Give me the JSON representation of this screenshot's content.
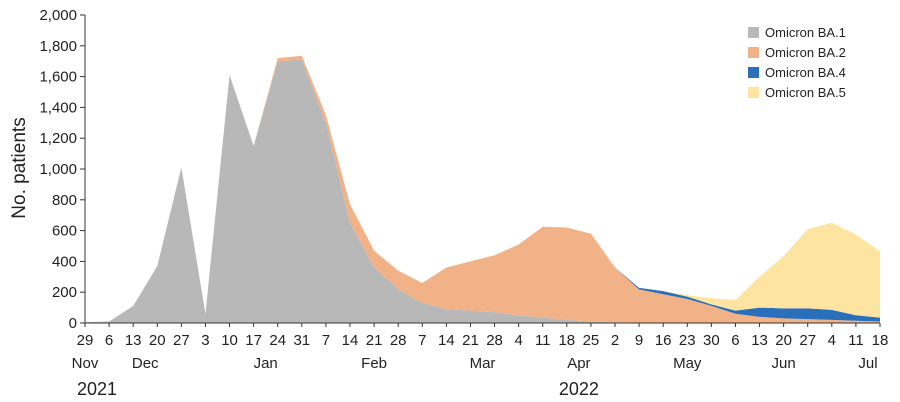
{
  "chart_data": {
    "type": "area",
    "stacked": true,
    "ylabel": "No. patients",
    "ylim": [
      0,
      2000
    ],
    "yticks": [
      0,
      200,
      400,
      600,
      800,
      1000,
      1200,
      1400,
      1600,
      1800,
      2000
    ],
    "ytick_labels": [
      "0",
      "200",
      "400",
      "600",
      "800",
      "1,000",
      "1,200",
      "1,400",
      "1,600",
      "1,800",
      "2,000"
    ],
    "x_day_labels": [
      "29",
      "6",
      "13",
      "20",
      "27",
      "3",
      "10",
      "17",
      "24",
      "31",
      "7",
      "14",
      "21",
      "28",
      "7",
      "14",
      "21",
      "28",
      "4",
      "11",
      "18",
      "25",
      "2",
      "9",
      "16",
      "23",
      "30",
      "6",
      "13",
      "20",
      "27",
      "4",
      "11",
      "18"
    ],
    "months": [
      {
        "label": "Nov",
        "at_week": 0
      },
      {
        "label": "Dec",
        "at_week": 2.5
      },
      {
        "label": "Jan",
        "at_week": 7.5
      },
      {
        "label": "Feb",
        "at_week": 12
      },
      {
        "label": "Mar",
        "at_week": 16.5
      },
      {
        "label": "Apr",
        "at_week": 20.5
      },
      {
        "label": "May",
        "at_week": 25
      },
      {
        "label": "Jun",
        "at_week": 29
      },
      {
        "label": "Jul",
        "at_week": 32.5
      }
    ],
    "years": [
      {
        "label": "2021",
        "at_week": 0.5
      },
      {
        "label": "2022",
        "at_week": 20.5
      }
    ],
    "legend_position": "top-right",
    "series": [
      {
        "name": "Omicron BA.1",
        "color": "#b8b8b8",
        "values": [
          5,
          10,
          110,
          370,
          1010,
          60,
          1610,
          1150,
          1700,
          1710,
          1300,
          650,
          360,
          220,
          130,
          90,
          80,
          70,
          50,
          35,
          20,
          10,
          5,
          3,
          2,
          1,
          1,
          0,
          0,
          0,
          0,
          0,
          0,
          0
        ]
      },
      {
        "name": "Omicron BA.2",
        "color": "#f2b287",
        "values": [
          0,
          0,
          0,
          0,
          0,
          0,
          0,
          0,
          20,
          25,
          50,
          120,
          110,
          120,
          130,
          270,
          320,
          370,
          460,
          590,
          600,
          570,
          355,
          215,
          185,
          155,
          110,
          60,
          40,
          30,
          25,
          20,
          15,
          10
        ]
      },
      {
        "name": "Omicron BA.4",
        "color": "#2a6fba",
        "values": [
          0,
          0,
          0,
          0,
          0,
          0,
          0,
          0,
          0,
          0,
          0,
          0,
          0,
          0,
          0,
          0,
          0,
          0,
          0,
          0,
          0,
          0,
          0,
          10,
          20,
          15,
          10,
          20,
          60,
          65,
          70,
          65,
          35,
          25
        ]
      },
      {
        "name": "Omicron BA.5",
        "color": "#fde4a0",
        "values": [
          0,
          0,
          0,
          0,
          0,
          0,
          0,
          0,
          0,
          0,
          0,
          0,
          0,
          0,
          0,
          0,
          0,
          0,
          0,
          0,
          0,
          0,
          0,
          0,
          0,
          10,
          40,
          70,
          200,
          340,
          515,
          565,
          525,
          430
        ]
      }
    ]
  }
}
